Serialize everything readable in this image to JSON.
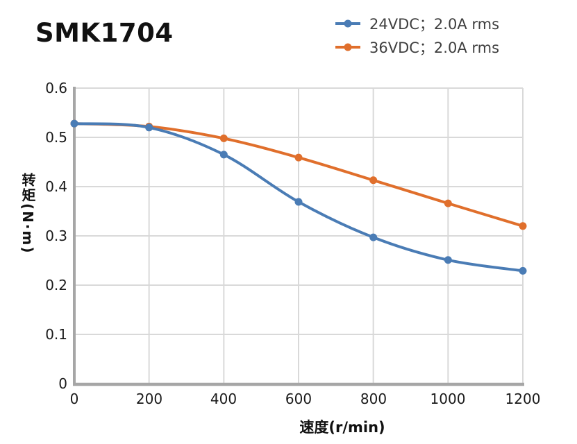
{
  "title": "SMK1704",
  "legend": [
    {
      "label": "24VDC；2.0A rms",
      "color": "#4A7CB5"
    },
    {
      "label": "36VDC；2.0A rms",
      "color": "#E06F2C"
    }
  ],
  "colors": {
    "series_blue": "#4A7CB5",
    "series_orange": "#E06F2C",
    "grid": "#D9D9D9",
    "axis": "#A6A6A6",
    "tick_text": "#1A1A1A",
    "legend_text": "#3F3F3F"
  },
  "chart_data": {
    "type": "line",
    "title": "SMK1704",
    "x": [
      0,
      200,
      400,
      600,
      800,
      1000,
      1200
    ],
    "series": [
      {
        "name": "24VDC；2.0A rms",
        "color": "#4A7CB5",
        "values": [
          0.528,
          0.52,
          0.465,
          0.369,
          0.297,
          0.251,
          0.229
        ]
      },
      {
        "name": "36VDC；2.0A rms",
        "color": "#E06F2C",
        "values": [
          0.528,
          0.522,
          0.498,
          0.459,
          0.413,
          0.366,
          0.32
        ]
      }
    ],
    "xlabel": "速度(r/min)",
    "ylabel": "转矩(N·m)",
    "xlim": [
      0,
      1200
    ],
    "ylim": [
      0,
      0.6
    ],
    "xticks": [
      0,
      200,
      400,
      600,
      800,
      1000,
      1200
    ],
    "yticks": [
      0,
      0.1,
      0.2,
      0.3,
      0.4,
      0.5,
      0.6
    ],
    "xtick_labels": [
      "0",
      "200",
      "400",
      "600",
      "800",
      "1000",
      "1200"
    ],
    "ytick_labels": [
      "0",
      "0.1",
      "0.2",
      "0.3",
      "0.4",
      "0.5",
      "0.6"
    ],
    "grid": true,
    "smooth": true,
    "markers": "circle",
    "legend_position": "top-right"
  }
}
